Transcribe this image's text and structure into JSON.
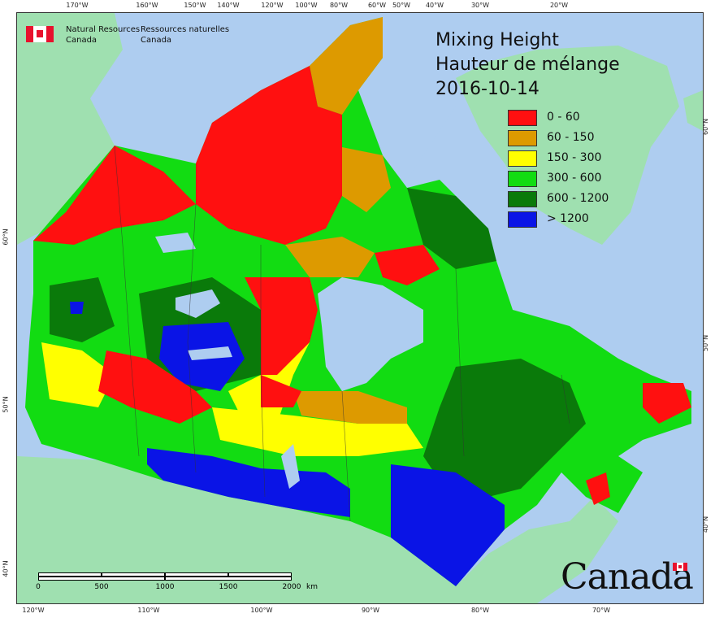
{
  "agency": {
    "en_line1": "Natural Resources",
    "en_line2": "Canada",
    "fr_line1": "Ressources naturelles",
    "fr_line2": "Canada"
  },
  "title": {
    "line1": "Mixing Height",
    "line2": "Hauteur de mélange",
    "date": "2016-10-14"
  },
  "legend": [
    {
      "label": "0 - 60",
      "color": "#ff1010"
    },
    {
      "label": "60 - 150",
      "color": "#dd9a00"
    },
    {
      "label": "150 - 300",
      "color": "#ffff00"
    },
    {
      "label": "300 - 600",
      "color": "#12dc12"
    },
    {
      "label": "600 - 1200",
      "color": "#0a7a0a"
    },
    {
      "label": "> 1200",
      "color": "#0a14e6"
    }
  ],
  "graticule_top": [
    "170°W",
    "160°W",
    "150°W",
    "140°W",
    "120°W",
    "100°W",
    "80°W",
    "60°W",
    "50°W",
    "40°W",
    "30°W",
    "20°W"
  ],
  "graticule_bottom": [
    "120°W",
    "110°W",
    "100°W",
    "90°W",
    "80°W",
    "70°W"
  ],
  "graticule_left": [
    "60°N",
    "50°N",
    "40°N"
  ],
  "graticule_right": [
    "60°N",
    "50°N",
    "40°N"
  ],
  "scale": {
    "labels": [
      "0",
      "500",
      "1000",
      "1500",
      "2000"
    ],
    "unit": "km"
  },
  "wordmark": "Canada",
  "colors": {
    "ocean": "#aecdf0",
    "foreign_land": "#9fe0b0"
  }
}
